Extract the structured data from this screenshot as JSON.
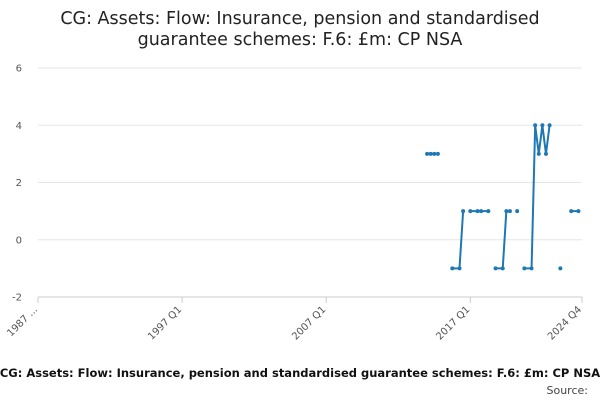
{
  "chart_data": {
    "type": "line",
    "title_lines": [
      "CG: Assets: Flow: Insurance, pension and standardised",
      "guarantee schemes: F.6: £m: CP NSA"
    ],
    "footer": "CG: Assets: Flow: Insurance, pension and standardised guarantee schemes: F.6: £m: CP NSA",
    "source_label": "Source:",
    "x_ticks": [
      "1987 ...",
      "1997 Q1",
      "2007 Q1",
      "2017 Q1",
      "2024 Q4"
    ],
    "y_ticks": [
      "-2",
      "0",
      "2",
      "4",
      "6"
    ],
    "ylim": [
      -2,
      6
    ],
    "xlim": [
      "1987 Q1",
      "2024 Q4"
    ],
    "grid": true,
    "series_color": "#1f78b4",
    "series": [
      {
        "segments": [
          [
            [
              "2014 Q1",
              3
            ],
            [
              "2014 Q2",
              3
            ],
            [
              "2014 Q3",
              3
            ],
            [
              "2014 Q4",
              3
            ]
          ],
          [
            [
              "2015 Q4",
              -1
            ],
            [
              "2016 Q2",
              -1
            ],
            [
              "2016 Q3",
              1
            ]
          ],
          [
            [
              "2017 Q1",
              1
            ],
            [
              "2017 Q3",
              1
            ],
            [
              "2017 Q4",
              1
            ],
            [
              "2018 Q2",
              1
            ]
          ],
          [
            [
              "2018 Q4",
              -1
            ],
            [
              "2019 Q2",
              -1
            ],
            [
              "2019 Q3",
              1
            ],
            [
              "2019 Q4",
              1
            ]
          ],
          [
            [
              "2020 Q2",
              1
            ]
          ],
          [
            [
              "2020 Q4",
              -1
            ],
            [
              "2021 Q2",
              -1
            ],
            [
              "2021 Q3",
              4
            ],
            [
              "2021 Q4",
              3
            ],
            [
              "2022 Q1",
              4
            ],
            [
              "2022 Q2",
              3
            ],
            [
              "2022 Q3",
              4
            ]
          ],
          [
            [
              "2023 Q2",
              -1
            ]
          ],
          [
            [
              "2024 Q1",
              1
            ],
            [
              "2024 Q3",
              1
            ]
          ]
        ]
      }
    ]
  }
}
